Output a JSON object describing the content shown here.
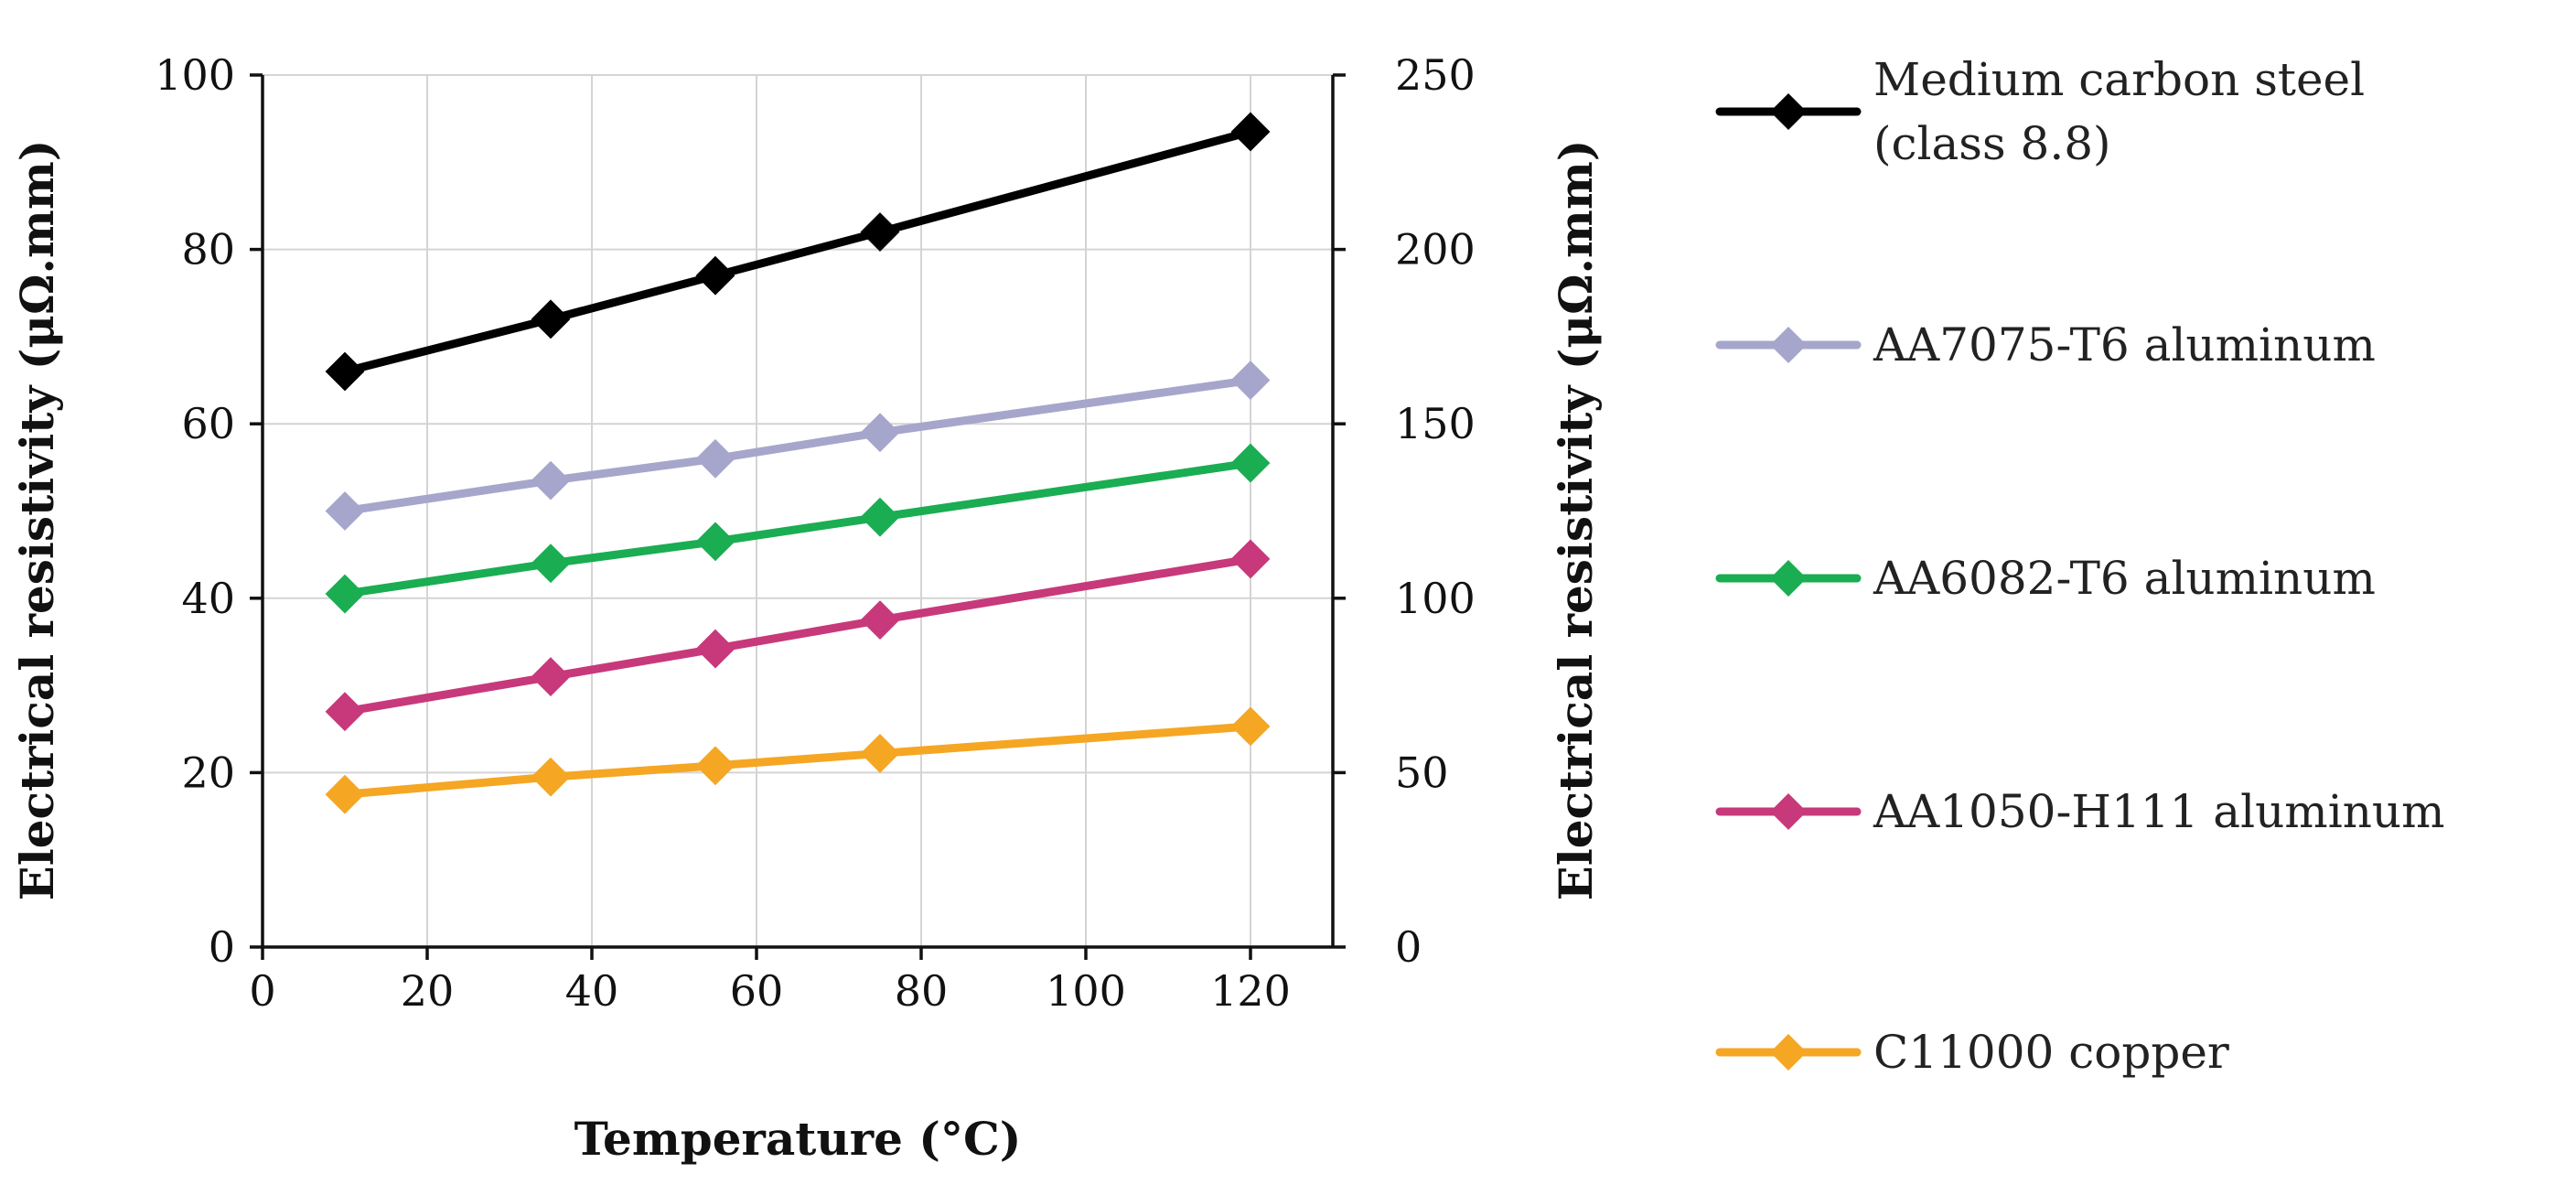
{
  "chart_data": {
    "type": "line",
    "title": "",
    "xlabel": "Temperature (°C)",
    "ylabel": "Electrical resistivity (μΩ.mm)",
    "y2label": "Electrical resistivity (μΩ.mm)",
    "xlim": [
      0,
      130
    ],
    "ylim": [
      0,
      100
    ],
    "y2lim": [
      0,
      250
    ],
    "xticks": [
      0,
      20,
      40,
      60,
      80,
      100,
      120
    ],
    "yticks": [
      0,
      20,
      40,
      60,
      80,
      100
    ],
    "y2ticks": [
      0,
      50,
      100,
      150,
      200,
      250
    ],
    "grid": true,
    "legend_position": "right",
    "x": [
      10,
      35,
      55,
      75,
      120
    ],
    "series": [
      {
        "name": "Medium carbon steel (class 8.8)",
        "legend_lines": [
          "Medium carbon steel",
          "(class 8.8)"
        ],
        "color": "#000000",
        "axis": "left",
        "values": [
          66,
          72,
          77,
          82,
          93.5
        ]
      },
      {
        "name": "AA7075-T6 aluminum",
        "legend_lines": [
          "AA7075-T6 aluminum"
        ],
        "color": "#a6a6cc",
        "axis": "left",
        "values": [
          50,
          53.5,
          56,
          59,
          65
        ]
      },
      {
        "name": "AA6082-T6 aluminum",
        "legend_lines": [
          "AA6082-T6 aluminum"
        ],
        "color": "#1aad52",
        "axis": "left",
        "values": [
          40.5,
          44,
          46.5,
          49.3,
          55.5
        ]
      },
      {
        "name": "AA1050-H111 aluminum",
        "legend_lines": [
          "AA1050-H111 aluminum"
        ],
        "color": "#c7397b",
        "axis": "left",
        "values": [
          27,
          31,
          34.2,
          37.5,
          44.5
        ]
      },
      {
        "name": "C11000 copper",
        "legend_lines": [
          "C11000 copper"
        ],
        "color": "#f5a623",
        "axis": "left",
        "values": [
          17.5,
          19.5,
          20.8,
          22.2,
          25.3
        ]
      }
    ]
  }
}
